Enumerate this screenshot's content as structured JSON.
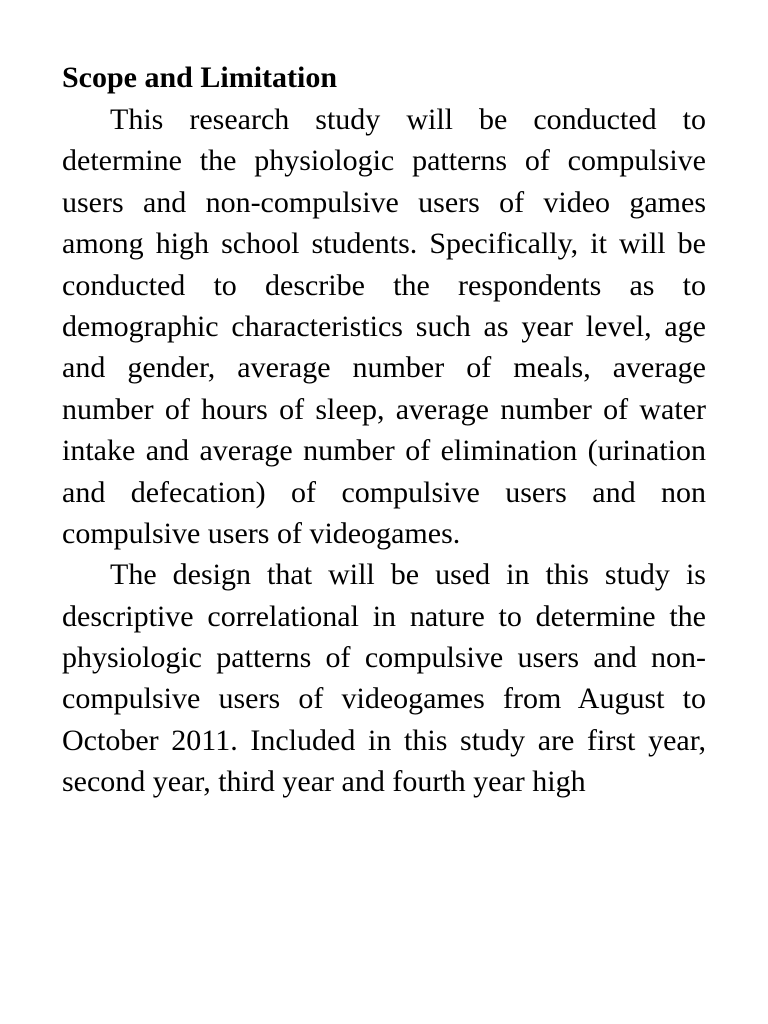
{
  "heading": "Scope and Limitation",
  "paragraph1": "This research study will be conducted to determine the physiologic patterns of compulsive users and non-compulsive users of video games among high school students. Specifically, it will be conducted to describe the respondents as to demographic characteristics such as year level, age and gender, average number of meals, average number of hours of sleep, average number of water intake and average number of elimination (urination and defecation) of compulsive users and non compulsive users of videogames.",
  "paragraph2": "The design that will be used in this study is descriptive correlational in nature to determine the physiologic patterns of compulsive users and non-compulsive users of videogames from August to October 2011. Included in this study are first year, second year, third year and fourth year high"
}
